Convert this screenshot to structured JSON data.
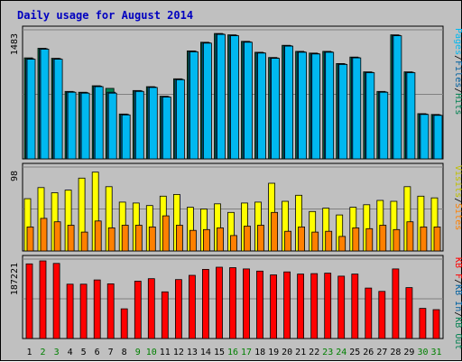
{
  "colors": {
    "background": "#c0c0c0",
    "plot_bg": "#c0c0c0",
    "title": "#0000c0",
    "pages": "#00b8f0",
    "files": "#0060a0",
    "hits": "#008050",
    "visits": "#ffff00",
    "sites": "#ff8000",
    "kbf": "#ff0000",
    "kbin": "#0060a0",
    "kbout": "#008050",
    "weekend_label": "#008000",
    "weekday_label": "#000000",
    "separator": "#000000"
  },
  "chart_data": {
    "type": "bar",
    "title": "Daily usage for August 2014",
    "categories": [
      "1",
      "2",
      "3",
      "4",
      "5",
      "6",
      "7",
      "8",
      "9",
      "10",
      "11",
      "12",
      "13",
      "14",
      "15",
      "16",
      "17",
      "18",
      "19",
      "20",
      "21",
      "22",
      "23",
      "24",
      "25",
      "26",
      "27",
      "28",
      "29",
      "30",
      "31"
    ],
    "weekend_days": [
      "2",
      "3",
      "9",
      "10",
      "16",
      "17",
      "23",
      "24",
      "30",
      "31"
    ],
    "panels": [
      {
        "name": "hits-files-pages",
        "ymax_label": "1483",
        "ymax": 1483,
        "side_labels": [
          {
            "text": "Pages",
            "color": "#00b8f0"
          },
          {
            "text": "/",
            "color": "#000000"
          },
          {
            "text": "Files",
            "color": "#0060a0"
          },
          {
            "text": "/",
            "color": "#000000"
          },
          {
            "text": "Hits",
            "color": "#008050"
          }
        ],
        "series": [
          {
            "name": "Hits",
            "color": "#008050",
            "values": [
              1160,
              1270,
              1155,
              775,
              765,
              840,
              810,
              515,
              785,
              830,
              720,
              920,
              1240,
              1340,
              1440,
              1425,
              1350,
              1225,
              1165,
              1305,
              1235,
              1215,
              1235,
              1095,
              1170,
              1000,
              775,
              1425,
              1000,
              520,
              510
            ]
          },
          {
            "name": "Files",
            "color": "#0060a0",
            "values": [
              1150,
              1265,
              1150,
              770,
              760,
              835,
              765,
              510,
              780,
              825,
              715,
              915,
              1235,
              1335,
              1435,
              1420,
              1345,
              1220,
              1160,
              1300,
              1230,
              1210,
              1230,
              1090,
              1165,
              995,
              770,
              1420,
              995,
              515,
              505
            ]
          },
          {
            "name": "Pages",
            "color": "#00b8f0",
            "values": [
              1145,
              1260,
              1145,
              765,
              755,
              830,
              755,
              505,
              775,
              820,
              710,
              910,
              1230,
              1330,
              1430,
              1415,
              1340,
              1215,
              1155,
              1295,
              1225,
              1205,
              1225,
              1085,
              1160,
              990,
              765,
              1415,
              990,
              510,
              500
            ]
          }
        ]
      },
      {
        "name": "visits-sites",
        "ymax_label": "98",
        "ymax": 98,
        "side_labels": [
          {
            "text": "Visits",
            "color": "#c0c000"
          },
          {
            "text": "/",
            "color": "#000000"
          },
          {
            "text": "Sites",
            "color": "#ff8000"
          }
        ],
        "series": [
          {
            "name": "Visits",
            "color": "#ffff00",
            "values": [
              61,
              74,
              68,
              71,
              85,
              92,
              75,
              57,
              56,
              53,
              64,
              66,
              51,
              49,
              55,
              45,
              56,
              57,
              79,
              58,
              65,
              46,
              50,
              42,
              51,
              54,
              59,
              58,
              75,
              64,
              62
            ]
          },
          {
            "name": "Sites",
            "color": "#ff8000",
            "values": [
              28,
              38,
              34,
              30,
              22,
              35,
              27,
              30,
              30,
              28,
              41,
              30,
              24,
              25,
              27,
              18,
              29,
              30,
              45,
              23,
              28,
              22,
              23,
              17,
              27,
              26,
              30,
              25,
              34,
              28,
              28
            ]
          }
        ]
      },
      {
        "name": "kbytes",
        "ymax_label": "187221",
        "ymax": 187221,
        "side_labels": [
          {
            "text": "KB F",
            "color": "#ff0000"
          },
          {
            "text": "/",
            "color": "#000000"
          },
          {
            "text": "KB In",
            "color": "#0060a0"
          },
          {
            "text": "/",
            "color": "#000000"
          },
          {
            "text": "KB Out",
            "color": "#008050"
          }
        ],
        "series": [
          {
            "name": "KB F",
            "color": "#ff0000",
            "values": [
              176000,
              183000,
              177000,
              128000,
              128000,
              138000,
              129000,
              70000,
              135000,
              141000,
              110000,
              139000,
              149000,
              163000,
              168000,
              167000,
              164000,
              159000,
              150000,
              157000,
              152000,
              153000,
              154000,
              147000,
              152000,
              119000,
              111000,
              164000,
              120000,
              71000,
              68000
            ]
          }
        ]
      }
    ]
  }
}
